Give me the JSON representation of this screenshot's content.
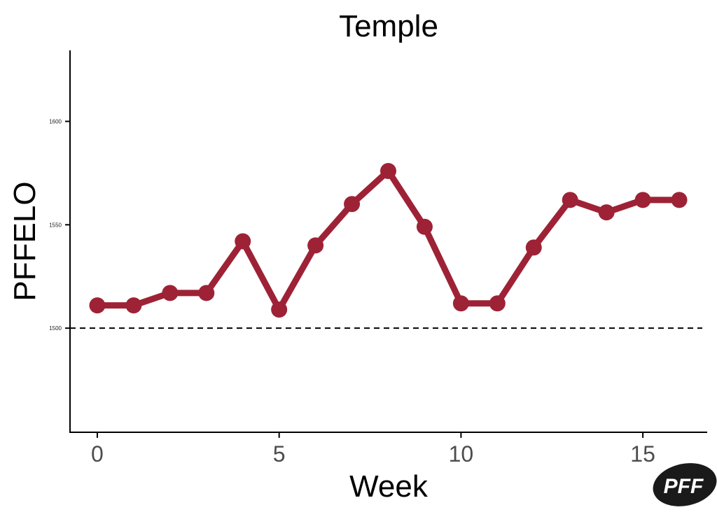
{
  "chart_data": {
    "type": "line",
    "title": "Temple",
    "xlabel": "Week",
    "ylabel": "PFFELO",
    "x": [
      0,
      1,
      2,
      3,
      4,
      5,
      6,
      7,
      8,
      9,
      10,
      11,
      12,
      13,
      14,
      15,
      16
    ],
    "series": [
      {
        "values": [
          1511,
          1511,
          1517,
          1517,
          1542,
          1509,
          1540,
          1560,
          1576,
          1549,
          1512,
          1512,
          1539,
          1562,
          1556,
          1562,
          1562
        ],
        "color": "#9e2236"
      }
    ],
    "xticks": [
      0,
      5,
      10,
      15
    ],
    "yticks": [
      1500,
      1550,
      1600
    ],
    "xlim": [
      -0.75,
      16.75
    ],
    "ylim": [
      1450,
      1634
    ],
    "reference_line": {
      "y": 1500,
      "style": "dashed",
      "color": "#000000"
    },
    "grid": false,
    "legend": "none"
  },
  "logo": {
    "text": "PFF",
    "color": "#1a1a1a"
  }
}
